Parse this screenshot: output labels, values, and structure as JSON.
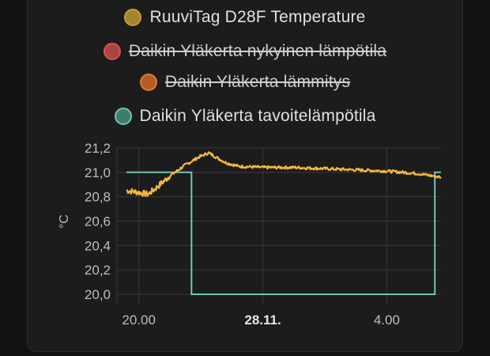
{
  "legend": [
    {
      "label": "RuuviTag D28F Temperature",
      "color": "#c9a227",
      "fill": "#a5822f",
      "hidden": false
    },
    {
      "label": "Daikin Yläkerta nykyinen lämpötila",
      "color": "#d9534f",
      "fill": "#a94542",
      "hidden": true
    },
    {
      "label": "Daikin Yläkerta lämmitys",
      "color": "#e07b2f",
      "fill": "#b55b27",
      "hidden": true
    },
    {
      "label": "Daikin Yläkerta tavoitelämpötila",
      "color": "#6ec7b4",
      "fill": "#3e7c70",
      "hidden": false
    }
  ],
  "chart_data": {
    "type": "line",
    "ylabel": "°C",
    "ylim": [
      20.0,
      21.2
    ],
    "yticks": [
      "21,2",
      "21,0",
      "20,8",
      "20,6",
      "20,4",
      "20,2",
      "20,0"
    ],
    "ytick_values": [
      21.2,
      21.0,
      20.8,
      20.6,
      20.4,
      20.2,
      20.0
    ],
    "xlim": [
      19.6,
      29.75
    ],
    "xticks": [
      {
        "label": "20.00",
        "value": 20.0,
        "bold": false
      },
      {
        "label": "28.11.",
        "value": 24.0,
        "bold": true
      },
      {
        "label": "4.00",
        "value": 28.0,
        "bold": false
      }
    ],
    "grid": true,
    "series": [
      {
        "name": "RuuviTag D28F Temperature",
        "color": "#f5b942",
        "x": [
          19.6,
          19.9,
          20.3,
          20.5,
          21.0,
          21.5,
          21.9,
          22.25,
          22.45,
          22.8,
          23.2,
          24.0,
          25.0,
          26.0,
          27.0,
          28.0,
          29.0,
          29.75
        ],
        "y": [
          20.85,
          20.84,
          20.82,
          20.86,
          20.97,
          21.06,
          21.12,
          21.16,
          21.13,
          21.08,
          21.05,
          21.04,
          21.04,
          21.03,
          21.02,
          21.01,
          20.99,
          20.96
        ]
      },
      {
        "name": "Daikin Yläkerta tavoitelämpötila",
        "color": "#6ec7b4",
        "x": [
          19.6,
          21.7,
          21.7,
          29.55,
          29.55,
          29.75
        ],
        "y": [
          21.0,
          21.0,
          20.0,
          20.0,
          21.0,
          21.0
        ]
      }
    ]
  }
}
